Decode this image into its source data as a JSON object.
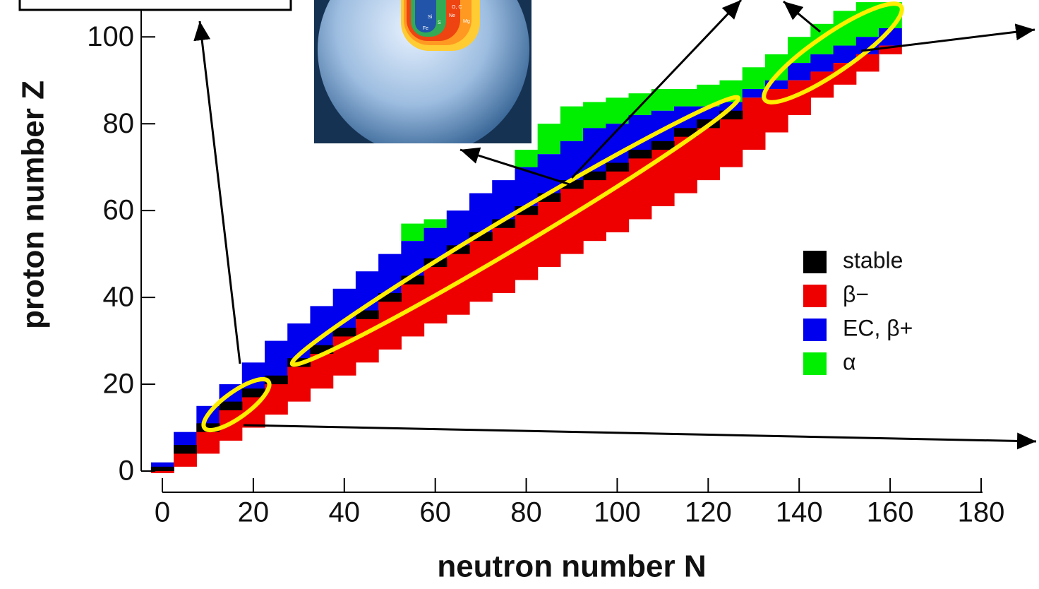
{
  "chart_data": {
    "type": "bands",
    "xlabel": "neutron number N",
    "ylabel": "proton number Z",
    "xlim": [
      0,
      180
    ],
    "ylim": [
      0,
      108.5
    ],
    "xticks": [
      0,
      20,
      40,
      60,
      80,
      100,
      120,
      140,
      160,
      180
    ],
    "yticks": [
      0,
      20,
      40,
      60,
      80,
      100
    ],
    "x": [
      0,
      5,
      10,
      15,
      20,
      25,
      30,
      35,
      40,
      45,
      50,
      55,
      60,
      65,
      70,
      75,
      80,
      85,
      90,
      95,
      100,
      105,
      110,
      115,
      120,
      125,
      130,
      135,
      140,
      145,
      150,
      155,
      160
    ],
    "series": [
      {
        "name": "α",
        "color": "#00ee00",
        "low": [
          null,
          null,
          null,
          null,
          null,
          null,
          null,
          null,
          null,
          null,
          null,
          53,
          56,
          null,
          null,
          null,
          70,
          73,
          76,
          79,
          80,
          82,
          83,
          84,
          84,
          85,
          88,
          90,
          94,
          96,
          98,
          100,
          102
        ],
        "high": [
          null,
          null,
          null,
          null,
          null,
          null,
          null,
          null,
          null,
          null,
          null,
          57,
          58,
          null,
          null,
          null,
          74,
          80,
          84,
          85,
          86,
          87,
          88,
          88,
          89,
          90,
          93,
          96,
          100,
          103,
          106,
          108,
          108
        ]
      },
      {
        "name": "EC, β+",
        "color": "#0000ee",
        "low": [
          0,
          5,
          10,
          15,
          18,
          21,
          25,
          28,
          32,
          36,
          40,
          44,
          48,
          51,
          54,
          57,
          60,
          63,
          66,
          68,
          70,
          73,
          75,
          78,
          80,
          82,
          86,
          88,
          90,
          92,
          94,
          96,
          98
        ],
        "high": [
          2,
          9,
          15,
          20,
          25,
          30,
          34,
          38,
          42,
          46,
          50,
          53,
          56,
          60,
          64,
          67,
          70,
          73,
          76,
          79,
          80,
          82,
          83,
          84,
          84,
          85,
          88,
          90,
          94,
          96,
          98,
          100,
          102
        ]
      },
      {
        "name": "β−",
        "color": "#ee0000",
        "low": [
          0,
          1,
          4,
          7,
          10,
          13,
          16,
          19,
          22,
          25,
          28,
          31,
          34,
          36,
          39,
          41,
          44,
          47,
          50,
          53,
          55,
          58,
          61,
          64,
          67,
          70,
          74,
          78,
          82,
          86,
          89,
          92,
          96
        ],
        "high": [
          0,
          5,
          10,
          15,
          18,
          21,
          25,
          28,
          32,
          36,
          40,
          44,
          48,
          51,
          54,
          57,
          60,
          63,
          66,
          68,
          70,
          73,
          75,
          78,
          80,
          82,
          86,
          88,
          90,
          92,
          94,
          96,
          98
        ]
      },
      {
        "name": "stable",
        "color": "#000000",
        "low": [
          0,
          4,
          9,
          14,
          17,
          20,
          24,
          27,
          31,
          35,
          39,
          43,
          47,
          50,
          53,
          56,
          59,
          62,
          65,
          67,
          69,
          72,
          74,
          77,
          79,
          81,
          null,
          null,
          null,
          null,
          null,
          null,
          null
        ],
        "high": [
          1,
          6,
          11,
          16,
          19,
          22,
          26,
          29,
          33,
          37,
          41,
          45,
          49,
          52,
          55,
          58,
          61,
          64,
          67,
          69,
          71,
          74,
          76,
          79,
          81,
          83,
          null,
          null,
          null,
          null,
          null,
          null,
          null
        ]
      }
    ],
    "legend_order": [
      3,
      2,
      1,
      0
    ]
  },
  "inset": {
    "layer_labels": [
      "Fe",
      "Si",
      "S",
      "O, C",
      "Ne",
      "Mg"
    ]
  }
}
